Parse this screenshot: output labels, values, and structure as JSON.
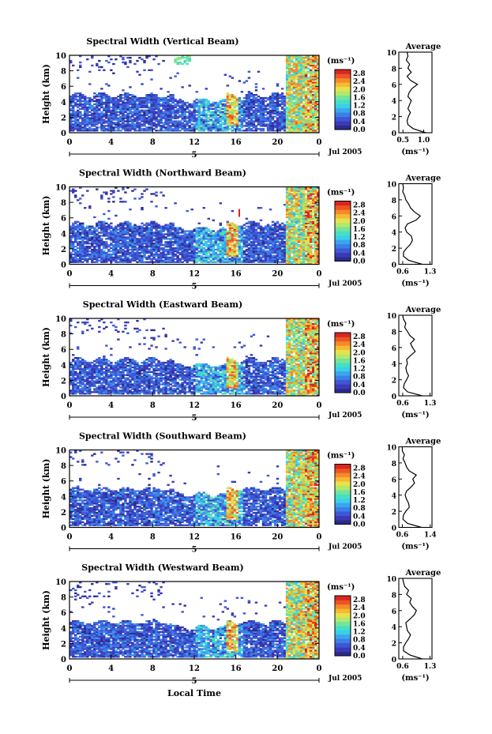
{
  "chart_data": [
    {
      "type": "heatmap",
      "title": "Spectral Width (Vertical Beam)",
      "ylabel": "Height (km)",
      "unit": "(ms⁻¹)",
      "x_ticks": [
        "0",
        "4",
        "8",
        "12",
        "16",
        "20",
        "0"
      ],
      "y_ticks": [
        "0",
        "2",
        "4",
        "6",
        "8",
        "10"
      ],
      "ylim": [
        0,
        10
      ],
      "date_mark": "5",
      "date_label": "Jul 2005",
      "colorbar_ticks": [
        "0.0",
        "0.4",
        "0.8",
        "1.2",
        "1.6",
        "2.0",
        "2.4",
        "2.8"
      ],
      "colorbar_range": [
        0,
        3.0
      ],
      "scheme": "vertical",
      "average": {
        "title": "Average",
        "xlabel": "(ms⁻¹)",
        "x_ticks": [
          "0.5",
          "1.0"
        ],
        "xlim": [
          0.4,
          1.2
        ],
        "heights": [
          0,
          0.5,
          1,
          1.5,
          2,
          2.5,
          3,
          3.5,
          4,
          4.5,
          5,
          5.5,
          6,
          6.5,
          7,
          7.5,
          8,
          8.5,
          9,
          9.5,
          10
        ],
        "values": [
          1.05,
          0.75,
          0.62,
          0.6,
          0.63,
          0.68,
          0.62,
          0.66,
          0.7,
          0.62,
          0.65,
          0.72,
          0.85,
          0.68,
          0.6,
          0.7,
          0.62,
          0.66,
          0.58,
          0.62,
          0.6
        ]
      }
    },
    {
      "type": "heatmap",
      "title": "Spectral Width (Northward Beam)",
      "ylabel": "Height (km)",
      "unit": "(ms⁻¹)",
      "x_ticks": [
        "0",
        "4",
        "8",
        "12",
        "16",
        "20",
        "0"
      ],
      "y_ticks": [
        "0",
        "2",
        "4",
        "6",
        "8",
        "10"
      ],
      "ylim": [
        0,
        10
      ],
      "date_mark": "5",
      "date_label": "Jul 2005",
      "colorbar_ticks": [
        "0.0",
        "0.4",
        "0.8",
        "1.2",
        "1.6",
        "2.0",
        "2.4",
        "2.8"
      ],
      "colorbar_range": [
        0,
        3.0
      ],
      "scheme": "north",
      "average": {
        "title": "Average",
        "xlabel": "(ms⁻¹)",
        "x_ticks": [
          "0.6",
          "1.3"
        ],
        "xlim": [
          0.5,
          1.35
        ],
        "heights": [
          0,
          0.5,
          1,
          1.5,
          2,
          2.5,
          3,
          3.5,
          4,
          4.5,
          5,
          5.5,
          6,
          6.5,
          7,
          7.5,
          8,
          8.5,
          9,
          9.5,
          10
        ],
        "values": [
          1.1,
          0.75,
          0.62,
          0.62,
          0.7,
          0.8,
          0.85,
          0.82,
          0.7,
          0.66,
          0.72,
          0.95,
          1.05,
          0.9,
          0.8,
          0.75,
          0.68,
          0.65,
          0.6,
          0.62,
          0.6
        ]
      }
    },
    {
      "type": "heatmap",
      "title": "Spectral Width (Eastward Beam)",
      "ylabel": "Height (km)",
      "unit": "(ms⁻¹)",
      "x_ticks": [
        "0",
        "4",
        "8",
        "12",
        "16",
        "20",
        "0"
      ],
      "y_ticks": [
        "0",
        "2",
        "4",
        "6",
        "8",
        "10"
      ],
      "ylim": [
        0,
        10
      ],
      "date_mark": "5",
      "date_label": "Jul 2005",
      "colorbar_ticks": [
        "0.0",
        "0.4",
        "0.8",
        "1.2",
        "1.6",
        "2.0",
        "2.4",
        "2.8"
      ],
      "colorbar_range": [
        0,
        3.0
      ],
      "scheme": "east",
      "average": {
        "title": "Average",
        "xlabel": "(ms⁻¹)",
        "x_ticks": [
          "0.6",
          "1.3"
        ],
        "xlim": [
          0.5,
          1.35
        ],
        "heights": [
          0,
          0.5,
          1,
          1.5,
          2,
          2.5,
          3,
          3.5,
          4,
          4.5,
          5,
          5.5,
          6,
          6.5,
          7,
          7.5,
          8,
          8.5,
          9,
          9.5,
          10
        ],
        "values": [
          1.1,
          0.72,
          0.62,
          0.64,
          0.7,
          0.75,
          0.7,
          0.68,
          0.72,
          0.7,
          0.8,
          0.92,
          0.85,
          0.8,
          0.9,
          0.78,
          0.72,
          0.65,
          0.68,
          0.62,
          0.6
        ]
      }
    },
    {
      "type": "heatmap",
      "title": "Spectral Width (Southward Beam)",
      "ylabel": "Height (km)",
      "unit": "(ms⁻¹)",
      "x_ticks": [
        "0",
        "4",
        "8",
        "12",
        "16",
        "20",
        "0"
      ],
      "y_ticks": [
        "0",
        "2",
        "4",
        "6",
        "8",
        "10"
      ],
      "ylim": [
        0,
        10
      ],
      "date_mark": "5",
      "date_label": "Jul 2005",
      "colorbar_ticks": [
        "0.0",
        "0.4",
        "0.8",
        "1.2",
        "1.6",
        "2.0",
        "2.4",
        "2.8"
      ],
      "colorbar_range": [
        0,
        3.0
      ],
      "scheme": "south",
      "average": {
        "title": "Average",
        "xlabel": "(ms⁻¹)",
        "x_ticks": [
          "0.6",
          "1.4"
        ],
        "xlim": [
          0.5,
          1.45
        ],
        "heights": [
          0,
          0.5,
          1,
          1.5,
          2,
          2.5,
          3,
          3.5,
          4,
          4.5,
          5,
          5.5,
          6,
          6.5,
          7,
          7.5,
          8,
          8.5,
          9,
          9.5,
          10
        ],
        "values": [
          1.15,
          0.75,
          0.62,
          0.63,
          0.7,
          0.8,
          0.78,
          0.72,
          0.68,
          0.72,
          0.85,
          0.95,
          0.9,
          1.0,
          0.8,
          0.72,
          0.68,
          0.62,
          0.66,
          0.6,
          0.6
        ]
      }
    },
    {
      "type": "heatmap",
      "title": "Spectral Width (Westward Beam)",
      "ylabel": "Height (km)",
      "unit": "(ms⁻¹)",
      "x_ticks": [
        "0",
        "4",
        "8",
        "12",
        "16",
        "20",
        "0"
      ],
      "y_ticks": [
        "0",
        "2",
        "4",
        "6",
        "8",
        "10"
      ],
      "ylim": [
        0,
        10
      ],
      "date_mark": "5",
      "date_label": "Jul 2005",
      "colorbar_ticks": [
        "0.0",
        "0.4",
        "0.8",
        "1.2",
        "1.6",
        "2.0",
        "2.4",
        "2.8"
      ],
      "colorbar_range": [
        0,
        3.0
      ],
      "scheme": "west",
      "xlabel": "Local Time",
      "average": {
        "title": "Average",
        "xlabel": "(ms⁻¹)",
        "x_ticks": [
          "0.6",
          "1.3"
        ],
        "xlim": [
          0.5,
          1.35
        ],
        "heights": [
          0,
          0.5,
          1,
          1.5,
          2,
          2.5,
          3,
          3.5,
          4,
          4.5,
          5,
          5.5,
          6,
          6.5,
          7,
          7.5,
          8,
          8.5,
          9,
          9.5,
          10
        ],
        "values": [
          1.1,
          0.78,
          0.62,
          0.62,
          0.68,
          0.75,
          0.8,
          0.72,
          0.7,
          0.68,
          0.8,
          0.9,
          0.95,
          0.85,
          0.78,
          0.82,
          0.7,
          0.75,
          0.65,
          0.62,
          0.6
        ]
      }
    }
  ],
  "colormap": [
    "#2b2b8c",
    "#3a3ab8",
    "#3f57d6",
    "#3c7fe6",
    "#3aa6ee",
    "#3ccfe8",
    "#45e0c3",
    "#76e39a",
    "#b4e86c",
    "#e6e34a",
    "#f6b933",
    "#f48a2a",
    "#ec5524",
    "#d9261f"
  ]
}
